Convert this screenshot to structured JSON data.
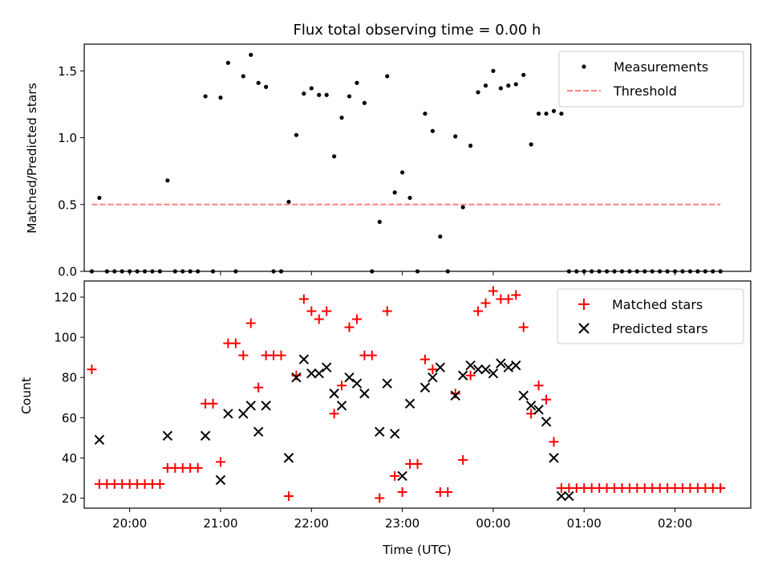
{
  "figure_title": "Flux total observing time = 0.00 h",
  "chart_data": [
    {
      "type": "scatter",
      "title": "Flux total observing time = 0.00 h",
      "xlabel": "",
      "ylabel": "Matched/Predicted stars",
      "ylim": [
        0,
        1.7
      ],
      "yticks": [
        "0.0",
        "0.5",
        "1.0",
        "1.5"
      ],
      "ytick_values": [
        0,
        0.5,
        1.0,
        1.5
      ],
      "grid": false,
      "legend_position": "top-right",
      "series": [
        {
          "name": "Measurements",
          "kind": "dot",
          "color": "#000000",
          "x": [
            "19:35",
            "19:40",
            "19:45",
            "19:50",
            "19:55",
            "20:00",
            "20:05",
            "20:10",
            "20:15",
            "20:20",
            "20:25",
            "20:30",
            "20:35",
            "20:40",
            "20:45",
            "20:50",
            "20:55",
            "21:00",
            "21:05",
            "21:10",
            "21:15",
            "21:20",
            "21:25",
            "21:30",
            "21:35",
            "21:40",
            "21:45",
            "21:50",
            "21:55",
            "22:00",
            "22:05",
            "22:10",
            "22:15",
            "22:20",
            "22:25",
            "22:30",
            "22:35",
            "22:40",
            "22:45",
            "22:50",
            "22:55",
            "23:00",
            "23:05",
            "23:10",
            "23:15",
            "23:20",
            "23:25",
            "23:30",
            "23:35",
            "23:40",
            "23:45",
            "23:50",
            "23:55",
            "00:00",
            "00:05",
            "00:10",
            "00:15",
            "00:20",
            "00:25",
            "00:30",
            "00:35",
            "00:40",
            "00:45",
            "00:50",
            "00:55",
            "01:00",
            "01:05",
            "01:10",
            "01:15",
            "01:20",
            "01:25",
            "01:30",
            "01:35",
            "01:40",
            "01:45",
            "01:50",
            "01:55",
            "02:00",
            "02:05",
            "02:10",
            "02:15",
            "02:20",
            "02:25",
            "02:30"
          ],
          "y": [
            0.0,
            0.55,
            0.0,
            0.0,
            0.0,
            0.0,
            0.0,
            0.0,
            0.0,
            0.0,
            0.68,
            0.0,
            0.0,
            0.0,
            0.0,
            1.31,
            0.0,
            1.3,
            1.56,
            0.0,
            1.46,
            1.62,
            1.41,
            1.38,
            0.0,
            0.0,
            0.52,
            1.02,
            1.33,
            1.37,
            1.32,
            1.32,
            0.86,
            1.15,
            1.31,
            1.41,
            1.26,
            0.0,
            0.37,
            1.46,
            0.59,
            0.74,
            0.55,
            0.0,
            1.18,
            1.05,
            0.26,
            0.0,
            1.01,
            0.48,
            0.94,
            1.34,
            1.39,
            1.5,
            1.37,
            1.39,
            1.4,
            1.47,
            0.95,
            1.18,
            1.18,
            1.2,
            1.18,
            0.0,
            0.0,
            0.0,
            0.0,
            0.0,
            0.0,
            0.0,
            0.0,
            0.0,
            0.0,
            0.0,
            0.0,
            0.0,
            0.0,
            0.0,
            0.0,
            0.0,
            0.0,
            0.0,
            0.0,
            0.0
          ]
        },
        {
          "name": "Threshold",
          "kind": "dashed-line",
          "color": "#ff8080",
          "x": [
            "19:35",
            "02:30"
          ],
          "y": [
            0.5,
            0.5
          ]
        }
      ]
    },
    {
      "type": "scatter",
      "title": "",
      "xlabel": "Time (UTC)",
      "ylabel": "Count",
      "ylim": [
        15,
        128
      ],
      "yticks": [
        "20",
        "40",
        "60",
        "80",
        "100",
        "120"
      ],
      "ytick_values": [
        20,
        40,
        60,
        80,
        100,
        120
      ],
      "x_range": [
        "19:30",
        "02:50"
      ],
      "xticks": [
        "20:00",
        "21:00",
        "22:00",
        "23:00",
        "00:00",
        "01:00",
        "02:00"
      ],
      "grid": false,
      "legend_position": "top-right",
      "series": [
        {
          "name": "Matched stars",
          "kind": "plus",
          "color": "#ff0000",
          "x": [
            "19:35",
            "19:40",
            "19:45",
            "19:50",
            "19:55",
            "20:00",
            "20:05",
            "20:10",
            "20:15",
            "20:20",
            "20:25",
            "20:30",
            "20:35",
            "20:40",
            "20:45",
            "20:50",
            "20:55",
            "21:00",
            "21:05",
            "21:10",
            "21:15",
            "21:20",
            "21:25",
            "21:30",
            "21:35",
            "21:40",
            "21:45",
            "21:50",
            "21:55",
            "22:00",
            "22:05",
            "22:10",
            "22:15",
            "22:20",
            "22:25",
            "22:30",
            "22:35",
            "22:40",
            "22:45",
            "22:50",
            "22:55",
            "23:00",
            "23:05",
            "23:10",
            "23:15",
            "23:20",
            "23:25",
            "23:30",
            "23:35",
            "23:40",
            "23:45",
            "23:50",
            "23:55",
            "00:00",
            "00:05",
            "00:10",
            "00:15",
            "00:20",
            "00:25",
            "00:30",
            "00:35",
            "00:40",
            "00:45",
            "00:50",
            "00:55",
            "01:00",
            "01:05",
            "01:10",
            "01:15",
            "01:20",
            "01:25",
            "01:30",
            "01:35",
            "01:40",
            "01:45",
            "01:50",
            "01:55",
            "02:00",
            "02:05",
            "02:10",
            "02:15",
            "02:20",
            "02:25",
            "02:30"
          ],
          "y": [
            84,
            27,
            27,
            27,
            27,
            27,
            27,
            27,
            27,
            27,
            35,
            35,
            35,
            35,
            35,
            67,
            67,
            38,
            97,
            97,
            91,
            107,
            75,
            91,
            91,
            91,
            21,
            81,
            119,
            113,
            109,
            113,
            62,
            76,
            105,
            109,
            91,
            91,
            20,
            113,
            31,
            23,
            37,
            37,
            89,
            84,
            23,
            23,
            72,
            39,
            81,
            113,
            117,
            123,
            119,
            119,
            121,
            105,
            62,
            76,
            69,
            48,
            25,
            25,
            25,
            25,
            25,
            25,
            25,
            25,
            25,
            25,
            25,
            25,
            25,
            25,
            25,
            25,
            25,
            25,
            25,
            25,
            25,
            25
          ]
        },
        {
          "name": "Predicted stars",
          "kind": "cross",
          "color": "#000000",
          "x": [
            "19:40",
            "20:25",
            "20:50",
            "21:00",
            "21:05",
            "21:15",
            "21:20",
            "21:25",
            "21:30",
            "21:45",
            "21:50",
            "21:55",
            "22:00",
            "22:05",
            "22:10",
            "22:15",
            "22:20",
            "22:25",
            "22:30",
            "22:35",
            "22:45",
            "22:50",
            "22:55",
            "23:00",
            "23:05",
            "23:15",
            "23:20",
            "23:25",
            "23:35",
            "23:40",
            "23:45",
            "23:50",
            "23:55",
            "00:00",
            "00:05",
            "00:10",
            "00:15",
            "00:20",
            "00:25",
            "00:30",
            "00:35",
            "00:40",
            "00:45",
            "00:50"
          ],
          "y": [
            49,
            51,
            51,
            29,
            62,
            62,
            66,
            53,
            66,
            40,
            80,
            89,
            82,
            82,
            85,
            72,
            66,
            80,
            77,
            72,
            53,
            77,
            52,
            31,
            67,
            75,
            80,
            85,
            71,
            81,
            86,
            84,
            84,
            82,
            87,
            85,
            86,
            71,
            66,
            64,
            58,
            40,
            21,
            21
          ]
        }
      ]
    }
  ]
}
